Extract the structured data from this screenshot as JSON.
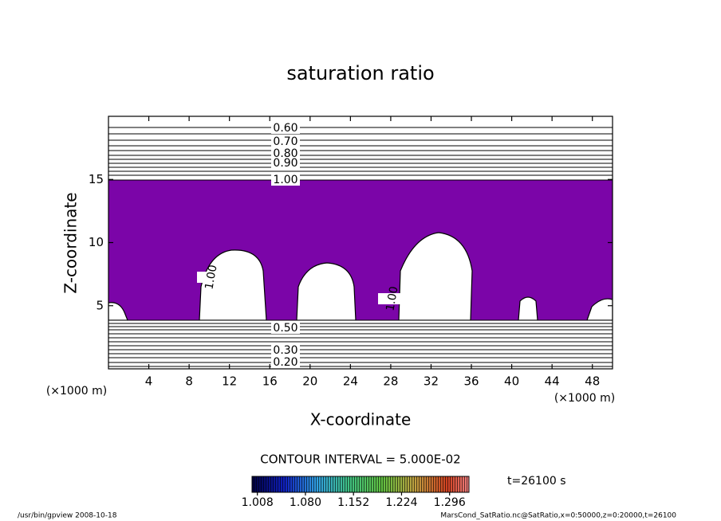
{
  "chart_data": {
    "type": "contour",
    "title": "saturation ratio",
    "x_label": "X-coordinate",
    "y_label": "Z-coordinate",
    "x_unit": "(×1000 m)",
    "y_unit": "(×1000 m)",
    "xlim": [
      0,
      50
    ],
    "ylim": [
      0,
      20
    ],
    "xticks": [
      4,
      8,
      12,
      16,
      20,
      24,
      28,
      32,
      36,
      40,
      44,
      48
    ],
    "yticks": [
      5,
      10,
      15
    ],
    "fill_color": "#7b05a8",
    "contour_labels": [
      {
        "value": 0.6,
        "label": "0.60"
      },
      {
        "value": 0.7,
        "label": "0.70"
      },
      {
        "value": 0.8,
        "label": "0.80"
      },
      {
        "value": 0.9,
        "label": "0.90"
      },
      {
        "value": 1,
        "label": "1.00"
      },
      {
        "value": 1,
        "label": "1.00"
      },
      {
        "value": 1,
        "label": "1.00"
      },
      {
        "value": 0.5,
        "label": "0.50"
      },
      {
        "value": 0.3,
        "label": "0.30"
      },
      {
        "value": 0.2,
        "label": "0.20"
      }
    ],
    "contour_interval": "CONTOUR INTERVAL = 5.000E-02",
    "colorbar_lim": [
      1.0,
      1.325
    ],
    "colorbar_ticks": [
      {
        "value": 1.008,
        "label": "1.008"
      },
      {
        "value": 1.08,
        "label": "1.080"
      },
      1.152,
      1.224,
      1.296
    ],
    "time_label": "t=26100 s",
    "footer_left": "/usr/bin/gpview   2008-10-18",
    "footer_right": "MarsCond_SatRatio.nc@SatRatio,x=0:50000,z=0:20000,t=26100"
  }
}
